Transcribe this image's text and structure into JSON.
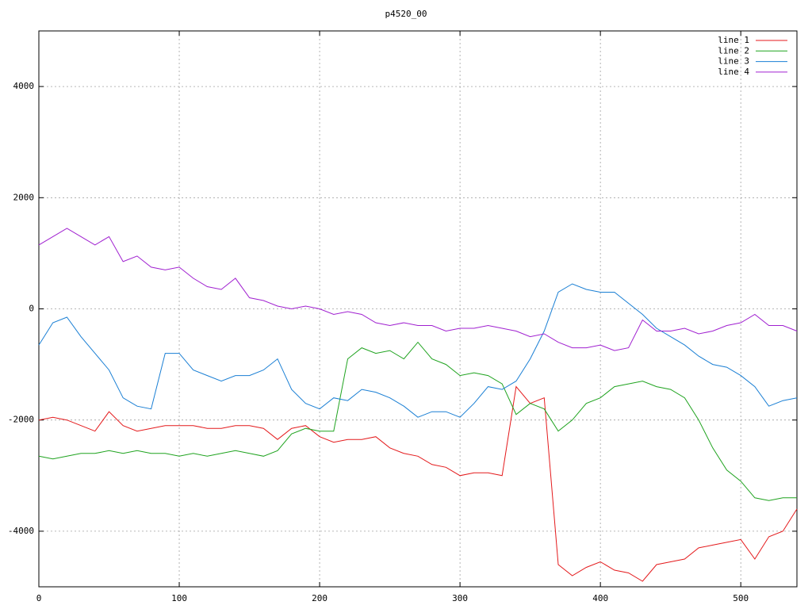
{
  "chart_data": {
    "type": "line",
    "title": "p4520_00",
    "x": [
      0,
      10,
      20,
      30,
      40,
      50,
      60,
      70,
      80,
      90,
      100,
      110,
      120,
      130,
      140,
      150,
      160,
      170,
      180,
      190,
      200,
      210,
      220,
      230,
      240,
      250,
      260,
      270,
      280,
      290,
      300,
      310,
      320,
      330,
      340,
      350,
      360,
      370,
      380,
      390,
      400,
      410,
      420,
      430,
      440,
      450,
      460,
      470,
      480,
      490,
      500,
      510,
      520,
      530,
      540
    ],
    "series": [
      {
        "name": "line 1",
        "color": "#e41a1c",
        "values": [
          -2000,
          -1950,
          -2000,
          -2100,
          -2200,
          -1850,
          -2100,
          -2200,
          -2150,
          -2100,
          -2100,
          -2100,
          -2150,
          -2150,
          -2100,
          -2100,
          -2150,
          -2350,
          -2150,
          -2100,
          -2300,
          -2400,
          -2350,
          -2350,
          -2300,
          -2500,
          -2600,
          -2650,
          -2800,
          -2850,
          -3000,
          -2950,
          -2950,
          -3000,
          -1400,
          -1700,
          -1600,
          -4600,
          -4800,
          -4650,
          -4550,
          -4700,
          -4750,
          -4900,
          -4600,
          -4550,
          -4500,
          -4300,
          -4250,
          -4200,
          -4150,
          -4500,
          -4100,
          -4000,
          -3600
        ]
      },
      {
        "name": "line 2",
        "color": "#1fa31f",
        "values": [
          -2650,
          -2700,
          -2650,
          -2600,
          -2600,
          -2550,
          -2600,
          -2550,
          -2600,
          -2600,
          -2650,
          -2600,
          -2650,
          -2600,
          -2550,
          -2600,
          -2650,
          -2550,
          -2250,
          -2150,
          -2200,
          -2200,
          -900,
          -700,
          -800,
          -750,
          -900,
          -600,
          -900,
          -1000,
          -1200,
          -1150,
          -1200,
          -1350,
          -1900,
          -1700,
          -1800,
          -2200,
          -2000,
          -1700,
          -1600,
          -1400,
          -1350,
          -1300,
          -1400,
          -1450,
          -1600,
          -2000,
          -2500,
          -2900,
          -3100,
          -3400,
          -3450,
          -3400,
          -3400
        ]
      },
      {
        "name": "line 3",
        "color": "#1a7fd4",
        "values": [
          -650,
          -250,
          -150,
          -500,
          -800,
          -1100,
          -1600,
          -1750,
          -1800,
          -800,
          -800,
          -1100,
          -1200,
          -1300,
          -1200,
          -1200,
          -1100,
          -900,
          -1450,
          -1700,
          -1800,
          -1600,
          -1650,
          -1450,
          -1500,
          -1600,
          -1750,
          -1950,
          -1850,
          -1850,
          -1950,
          -1700,
          -1400,
          -1450,
          -1300,
          -900,
          -400,
          300,
          450,
          350,
          300,
          300,
          100,
          -100,
          -350,
          -500,
          -650,
          -850,
          -1000,
          -1050,
          -1200,
          -1400,
          -1750,
          -1650,
          -1600
        ]
      },
      {
        "name": "line 4",
        "color": "#a020d0",
        "values": [
          1150,
          1300,
          1450,
          1300,
          1150,
          1300,
          850,
          950,
          750,
          700,
          750,
          550,
          400,
          350,
          550,
          200,
          150,
          50,
          0,
          50,
          0,
          -100,
          -50,
          -100,
          -250,
          -300,
          -250,
          -300,
          -300,
          -400,
          -350,
          -350,
          -300,
          -350,
          -400,
          -500,
          -450,
          -600,
          -700,
          -700,
          -650,
          -750,
          -700,
          -200,
          -400,
          -400,
          -350,
          -450,
          -400,
          -300,
          -250,
          -100,
          -300,
          -300,
          -400
        ]
      }
    ],
    "xlim": [
      0,
      540
    ],
    "xticks": [
      0,
      100,
      200,
      300,
      400,
      500
    ],
    "ylim": [
      -5000,
      5000
    ],
    "yticks": [
      -4000,
      -2000,
      0,
      2000,
      4000
    ],
    "grid": true,
    "legend": "top-right"
  }
}
